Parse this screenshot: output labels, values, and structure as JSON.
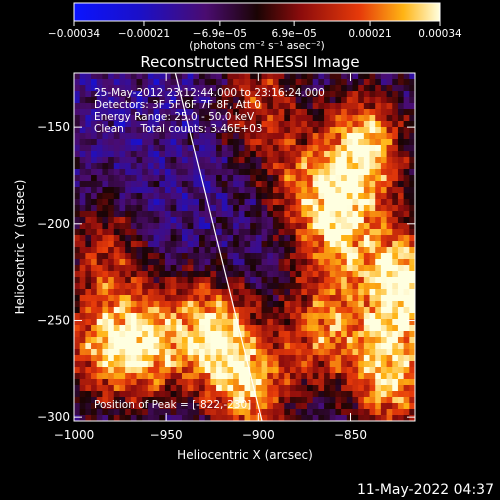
{
  "chart_data": {
    "type": "heatmap",
    "title": "Reconstructed RHESSI Image",
    "xlabel": "Heliocentric X (arcsec)",
    "ylabel": "Heliocentric Y (arcsec)",
    "xlim": [
      -1000,
      -815
    ],
    "ylim": [
      -302,
      -122
    ],
    "x_ticks": [
      -1000,
      -950,
      -900,
      -850
    ],
    "x_tick_labels": [
      "−1000",
      "−950",
      "−900",
      "−850"
    ],
    "y_ticks": [
      -150,
      -200,
      -250,
      -300
    ],
    "y_tick_labels": [
      "−150",
      "−200",
      "−250",
      "−300"
    ],
    "colorbar": {
      "range": [
        -0.00034,
        0.00034
      ],
      "ticks": [
        -0.00034,
        -0.00021,
        -6.9e-05,
        6.9e-05,
        0.00021,
        0.00034
      ],
      "tick_labels": [
        "−0.00034",
        "−0.00021",
        "−6.9e−05",
        "6.9e−05",
        "0.00021",
        "0.00034"
      ],
      "unit_label": "(photons cm⁻² s⁻¹ asec⁻²)"
    },
    "limb_line": {
      "x1": -945,
      "y1": -122,
      "x2": -898,
      "y2": -302
    },
    "grid_cols": 60,
    "grid_rows": 58,
    "hot_sources": [
      {
        "x": -822,
        "y": -230,
        "value": 0.00034
      },
      {
        "x": -842,
        "y": -160,
        "value": 0.0003
      },
      {
        "x": -858,
        "y": -200,
        "value": 0.00026
      },
      {
        "x": -828,
        "y": -280,
        "value": 0.00028
      },
      {
        "x": -925,
        "y": -255,
        "value": 0.00025
      },
      {
        "x": -960,
        "y": -262,
        "value": 0.00022
      },
      {
        "x": -985,
        "y": -265,
        "value": 0.00018
      },
      {
        "x": -865,
        "y": -255,
        "value": 0.0002
      },
      {
        "x": -905,
        "y": -285,
        "value": 0.00024
      },
      {
        "x": -985,
        "y": -215,
        "value": 0.0001
      },
      {
        "x": -900,
        "y": -135,
        "value": 0.00012
      },
      {
        "x": -880,
        "y": -175,
        "value": 8e-05
      }
    ],
    "background_level": -0.00012
  },
  "annotations": {
    "time_range": "25-May-2012 23:12:44.000 to 23:16:24.000",
    "detectors": "Detectors: 3F 5F 6F 7F 8F, Att 0",
    "energy_range": "Energy Range: 25.0 - 50.0 keV",
    "clean_counts": "Clean     Total counts: 3.46E+03",
    "peak_position": "Position of Peak = [-822,-230]"
  },
  "footer": {
    "timestamp": "11-May-2022 04:37"
  }
}
